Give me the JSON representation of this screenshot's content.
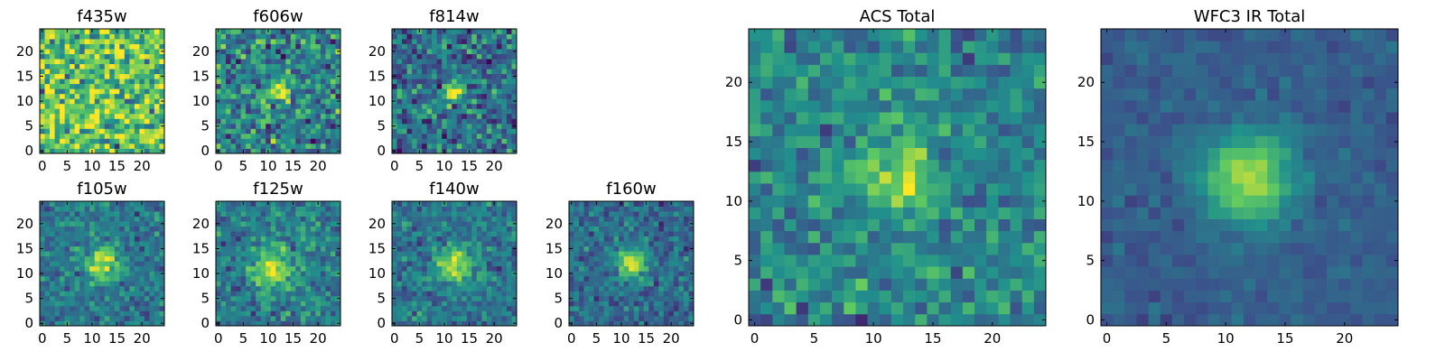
{
  "figure": {
    "colormap": "viridis",
    "colormap_stops": [
      "#440154",
      "#3b528b",
      "#21918c",
      "#5ec962",
      "#fde725"
    ]
  },
  "chart_data": [
    {
      "type": "heatmap",
      "title": "f435w",
      "grid": false,
      "xlim": [
        -0.5,
        24.5
      ],
      "ylim": [
        -0.5,
        24.5
      ],
      "xticks": [
        0,
        5,
        10,
        15,
        20
      ],
      "yticks": [
        0,
        5,
        10,
        15,
        20
      ],
      "image_size": [
        25,
        25
      ],
      "source_center": [
        12,
        12
      ],
      "source_peak": 0.03,
      "source_sigma": 3,
      "noise": 0.3,
      "background": 0.72,
      "seed": 11
    },
    {
      "type": "heatmap",
      "title": "f606w",
      "grid": false,
      "xlim": [
        -0.5,
        24.5
      ],
      "ylim": [
        -0.5,
        24.5
      ],
      "xticks": [
        0,
        5,
        10,
        15,
        20
      ],
      "yticks": [
        0,
        5,
        10,
        15,
        20
      ],
      "image_size": [
        25,
        25
      ],
      "source_center": [
        12,
        12
      ],
      "source_peak": 0.45,
      "source_sigma": 1.6,
      "noise": 0.24,
      "background": 0.45,
      "seed": 23
    },
    {
      "type": "heatmap",
      "title": "f814w",
      "grid": false,
      "xlim": [
        -0.5,
        24.5
      ],
      "ylim": [
        -0.5,
        24.5
      ],
      "xticks": [
        0,
        5,
        10,
        15,
        20
      ],
      "yticks": [
        0,
        5,
        10,
        15,
        20
      ],
      "image_size": [
        25,
        25
      ],
      "source_center": [
        12,
        12
      ],
      "source_peak": 0.5,
      "source_sigma": 1.5,
      "noise": 0.22,
      "background": 0.37,
      "seed": 37
    },
    {
      "type": "heatmap",
      "title": "f105w",
      "grid": false,
      "xlim": [
        -0.5,
        24.5
      ],
      "ylim": [
        -0.5,
        24.5
      ],
      "xticks": [
        0,
        5,
        10,
        15,
        20
      ],
      "yticks": [
        0,
        5,
        10,
        15,
        20
      ],
      "image_size": [
        25,
        25
      ],
      "source_center": [
        12,
        12
      ],
      "source_peak": 0.55,
      "source_sigma": 2.2,
      "noise": 0.14,
      "background": 0.4,
      "seed": 41
    },
    {
      "type": "heatmap",
      "title": "f125w",
      "grid": false,
      "xlim": [
        -0.5,
        24.5
      ],
      "ylim": [
        -0.5,
        24.5
      ],
      "xticks": [
        0,
        5,
        10,
        15,
        20
      ],
      "yticks": [
        0,
        5,
        10,
        15,
        20
      ],
      "image_size": [
        25,
        25
      ],
      "source_center": [
        11,
        11
      ],
      "source_peak": 0.5,
      "source_sigma": 2.8,
      "noise": 0.16,
      "background": 0.42,
      "seed": 53
    },
    {
      "type": "heatmap",
      "title": "f140w",
      "grid": false,
      "xlim": [
        -0.5,
        24.5
      ],
      "ylim": [
        -0.5,
        24.5
      ],
      "xticks": [
        0,
        5,
        10,
        15,
        20
      ],
      "yticks": [
        0,
        5,
        10,
        15,
        20
      ],
      "image_size": [
        25,
        25
      ],
      "source_center": [
        12,
        12
      ],
      "source_peak": 0.55,
      "source_sigma": 2.4,
      "noise": 0.14,
      "background": 0.4,
      "seed": 67
    },
    {
      "type": "heatmap",
      "title": "f160w",
      "grid": false,
      "xlim": [
        -0.5,
        24.5
      ],
      "ylim": [
        -0.5,
        24.5
      ],
      "xticks": [
        0,
        5,
        10,
        15,
        20
      ],
      "yticks": [
        0,
        5,
        10,
        15,
        20
      ],
      "image_size": [
        25,
        25
      ],
      "source_center": [
        12,
        12
      ],
      "source_peak": 0.6,
      "source_sigma": 2.0,
      "noise": 0.14,
      "background": 0.35,
      "seed": 79
    },
    {
      "type": "heatmap",
      "title": "ACS Total",
      "grid": false,
      "xlim": [
        -0.5,
        24.5
      ],
      "ylim": [
        -0.5,
        24.5
      ],
      "xticks": [
        0,
        5,
        10,
        15,
        20
      ],
      "yticks": [
        0,
        5,
        10,
        15,
        20
      ],
      "image_size": [
        25,
        25
      ],
      "source_center": [
        12,
        12
      ],
      "source_peak": 0.45,
      "source_sigma": 2.0,
      "noise": 0.16,
      "background": 0.45,
      "seed": 97
    },
    {
      "type": "heatmap",
      "title": "WFC3 IR Total",
      "grid": false,
      "xlim": [
        -0.5,
        24.5
      ],
      "ylim": [
        -0.5,
        24.5
      ],
      "xticks": [
        0,
        5,
        10,
        15,
        20
      ],
      "yticks": [
        0,
        5,
        10,
        15,
        20
      ],
      "image_size": [
        25,
        25
      ],
      "source_center": [
        12,
        12
      ],
      "source_peak": 0.6,
      "source_sigma": 2.6,
      "noise": 0.06,
      "background": 0.3,
      "seed": 113
    }
  ]
}
